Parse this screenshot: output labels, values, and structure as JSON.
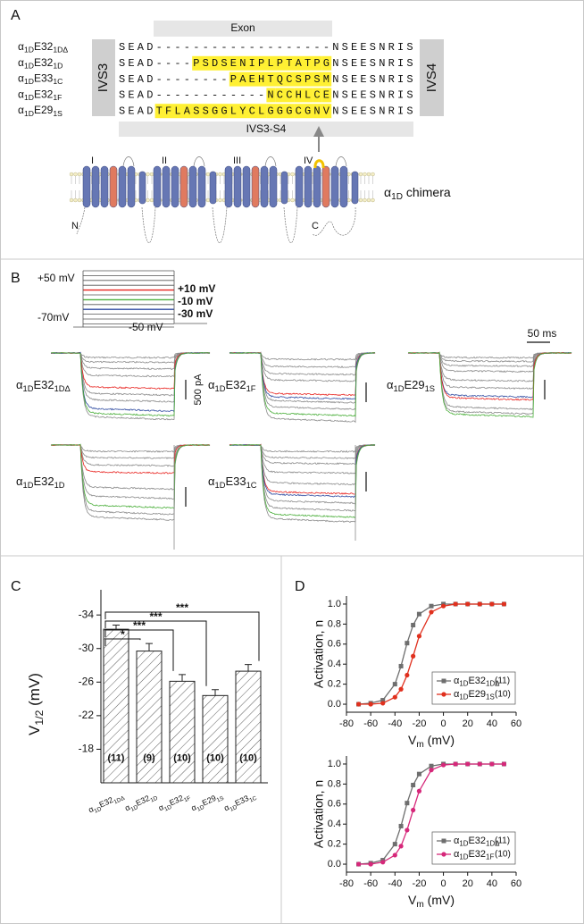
{
  "panel_labels": [
    "A",
    "B",
    "C",
    "D"
  ],
  "panel_a": {
    "exon_label": "Exon",
    "left_box": "IVS3",
    "right_box": "IVS4",
    "bar_label": "IVS3-S4",
    "rows": [
      {
        "name": [
          "α",
          "1D",
          "E32",
          "1DΔ"
        ],
        "segments": [
          {
            "text": "SEAD"
          },
          {
            "text": "-------------------"
          },
          {
            "text": "NSEESNRIS"
          }
        ]
      },
      {
        "name": [
          "α",
          "1D",
          "E32",
          "1D"
        ],
        "segments": [
          {
            "text": "SEAD----"
          },
          {
            "text": "PSDSENIPLPTATP",
            "style": "hl"
          },
          {
            "text": "G",
            "style": "hl-red"
          },
          {
            "text": "NSEESNRIS"
          }
        ]
      },
      {
        "name": [
          "α",
          "1D",
          "E33",
          "1C"
        ],
        "segments": [
          {
            "text": "SEAD--------"
          },
          {
            "text": "PAEHTQCSPSM",
            "style": "hl"
          },
          {
            "text": "NSEESNRIS"
          }
        ]
      },
      {
        "name": [
          "α",
          "1D",
          "E32",
          "1F"
        ],
        "segments": [
          {
            "text": "SEAD------------"
          },
          {
            "text": "N",
            "style": "hl"
          },
          {
            "text": "CC",
            "style": "hl-red"
          },
          {
            "text": "HL",
            "style": "hl"
          },
          {
            "text": "C",
            "style": "hl-red"
          },
          {
            "text": "E",
            "style": "hl"
          },
          {
            "text": "NSEESNRIS"
          }
        ]
      },
      {
        "name": [
          "α",
          "1D",
          "E29",
          "1S"
        ],
        "segments": [
          {
            "text": "SEAD"
          },
          {
            "text": "TFLASS",
            "style": "hl"
          },
          {
            "text": "GG",
            "style": "hl-red"
          },
          {
            "text": "LYCL",
            "style": "hl"
          },
          {
            "text": "GGG",
            "style": "hl-red"
          },
          {
            "text": "CGNV",
            "style": "hl"
          },
          {
            "text": "NSEESNRIS"
          }
        ]
      }
    ],
    "domains": [
      "I",
      "II",
      "III",
      "IV"
    ],
    "chimera": [
      "α",
      "1D",
      " chimera"
    ],
    "n_term": "N",
    "c_term": "C"
  },
  "panel_b": {
    "protocol": {
      "top": "+50 mV",
      "hold": "-70mV",
      "tail": "-50 mV",
      "steps": [
        {
          "label": "+10 mV",
          "color": "#e8231f"
        },
        {
          "label": "-10 mV",
          "color": "#4caf3c"
        },
        {
          "label": "-30 mV",
          "color": "#2e4aa0"
        }
      ]
    },
    "current_scale": "500 pA",
    "time_scale": "50 ms",
    "traces": [
      {
        "name": [
          "α",
          "1D",
          "E32",
          "1DΔ"
        ]
      },
      {
        "name": [
          "α",
          "1D",
          "E32",
          "1F"
        ]
      },
      {
        "name": [
          "α",
          "1D",
          "E29",
          "1S"
        ]
      },
      {
        "name": [
          "α",
          "1D",
          "E32",
          "1D"
        ]
      },
      {
        "name": [
          "α",
          "1D",
          "E33",
          "1C"
        ]
      }
    ]
  },
  "chart_data": [
    {
      "type": "bar",
      "y_label": [
        "V",
        "1/2",
        " (mV)"
      ],
      "categories": [
        [
          "α",
          "1D",
          "E32",
          "1DΔ"
        ],
        [
          "α",
          "1D",
          "E32",
          "1D"
        ],
        [
          "α",
          "1D",
          "E32",
          "1F"
        ],
        [
          "α",
          "1D",
          "E29",
          "1S"
        ],
        [
          "α",
          "1D",
          "E33",
          "1C"
        ]
      ],
      "values": [
        -32.3,
        -29.7,
        -26.1,
        -24.4,
        -27.3
      ],
      "errors": [
        0.5,
        0.9,
        0.8,
        0.7,
        0.8
      ],
      "n_labels": [
        "(11)",
        "(9)",
        "(10)",
        "(10)",
        "(10)"
      ],
      "ylim": [
        -14,
        -37
      ],
      "yticks": [
        -34,
        -30,
        -26,
        -22,
        -18
      ],
      "color": "#222222",
      "hatch": true,
      "annotations": [
        {
          "label": "*",
          "from": 0,
          "to": 1
        },
        {
          "label": "***",
          "from": 0,
          "to": 2
        },
        {
          "label": "***",
          "from": 0,
          "to": 3
        },
        {
          "label": "***",
          "from": 0,
          "to": 4
        }
      ]
    },
    {
      "type": "line",
      "y_label": "Activation, n",
      "x_label": [
        "V",
        "m",
        " (mV)"
      ],
      "x": [
        -70,
        -60,
        -50,
        -40,
        -35,
        -30,
        -25,
        -20,
        -10,
        0,
        10,
        20,
        30,
        40,
        50
      ],
      "series": [
        {
          "name": [
            "α",
            "1D",
            "E32",
            "1DΔ"
          ],
          "n_label": "(11)",
          "color": "#6e6e6e",
          "marker": "square",
          "values": [
            0.0,
            0.01,
            0.04,
            0.2,
            0.38,
            0.61,
            0.79,
            0.9,
            0.98,
            1.0,
            1.0,
            1.0,
            1.0,
            1.0,
            1.0
          ]
        },
        {
          "name": [
            "α",
            "1D",
            "E29",
            "1S"
          ],
          "n_label": "(10)",
          "color": "#e0301e",
          "marker": "circle",
          "values": [
            0.0,
            0.0,
            0.01,
            0.07,
            0.15,
            0.29,
            0.48,
            0.68,
            0.92,
            0.98,
            1.0,
            1.0,
            1.0,
            1.0,
            1.0
          ]
        }
      ],
      "xlim": [
        -80,
        60
      ],
      "xticks": [
        -80,
        -60,
        -40,
        -20,
        0,
        20,
        40,
        60
      ],
      "ylim": [
        -0.08,
        1.08
      ],
      "yticks": [
        {
          "value": 0,
          "label": "0.0"
        },
        0.2,
        0.4,
        0.6,
        0.8,
        {
          "value": 1,
          "label": "1.0"
        }
      ],
      "legend": "lower right"
    },
    {
      "type": "line",
      "y_label": "Activation, n",
      "x_label": [
        "V",
        "m",
        " (mV)"
      ],
      "x": [
        -70,
        -60,
        -50,
        -40,
        -35,
        -30,
        -25,
        -20,
        -10,
        0,
        10,
        20,
        30,
        40,
        50
      ],
      "series": [
        {
          "name": [
            "α",
            "1D",
            "E32",
            "1DΔ"
          ],
          "n_label": "(11)",
          "color": "#6e6e6e",
          "marker": "square",
          "values": [
            0.0,
            0.01,
            0.04,
            0.2,
            0.38,
            0.61,
            0.79,
            0.9,
            0.98,
            1.0,
            1.0,
            1.0,
            1.0,
            1.0,
            1.0
          ]
        },
        {
          "name": [
            "α",
            "1D",
            "E32",
            "1F"
          ],
          "n_label": "(10)",
          "color": "#d6287a",
          "marker": "circle",
          "values": [
            0.0,
            0.0,
            0.02,
            0.09,
            0.18,
            0.34,
            0.54,
            0.73,
            0.94,
            0.99,
            1.0,
            1.0,
            1.0,
            1.0,
            1.0
          ]
        }
      ],
      "xlim": [
        -80,
        60
      ],
      "xticks": [
        -80,
        -60,
        -40,
        -20,
        0,
        20,
        40,
        60
      ],
      "ylim": [
        -0.08,
        1.08
      ],
      "yticks": [
        {
          "value": 0,
          "label": "0.0"
        },
        0.2,
        0.4,
        0.6,
        0.8,
        {
          "value": 1,
          "label": "1.0"
        }
      ],
      "legend": "lower right"
    }
  ]
}
